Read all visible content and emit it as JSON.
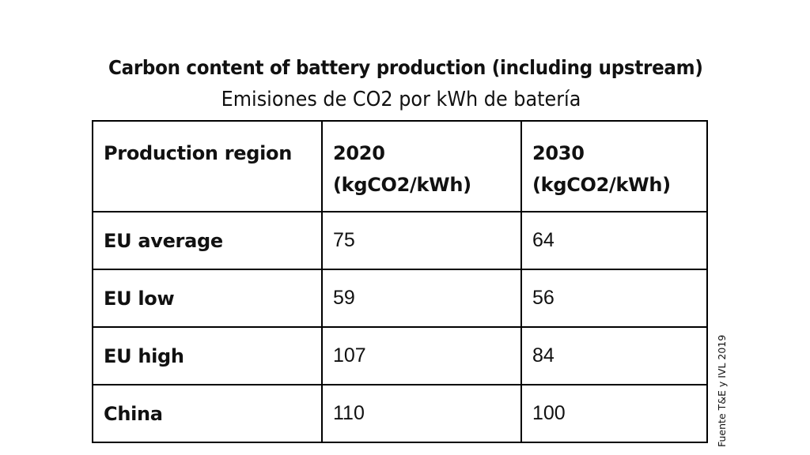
{
  "chart_data": {
    "type": "table",
    "title": "Carbon content of battery production (including upstream)",
    "subtitle": "Emisiones de CO2 por kWh de batería",
    "source": "Fuente T&E y IVL 2019",
    "header": {
      "col0": "Production region",
      "col1_line1": "2020",
      "col1_line2": "(kgCO2/kWh)",
      "col2_line1": "2030",
      "col2_line2": "(kgCO2/kWh)"
    },
    "rows": [
      {
        "region": "EU average",
        "v2020": "75",
        "v2030": "64"
      },
      {
        "region": "EU low",
        "v2020": "59",
        "v2030": "56"
      },
      {
        "region": "EU high",
        "v2020": "107",
        "v2030": "84"
      },
      {
        "region": "China",
        "v2020": "110",
        "v2030": "100"
      }
    ]
  }
}
